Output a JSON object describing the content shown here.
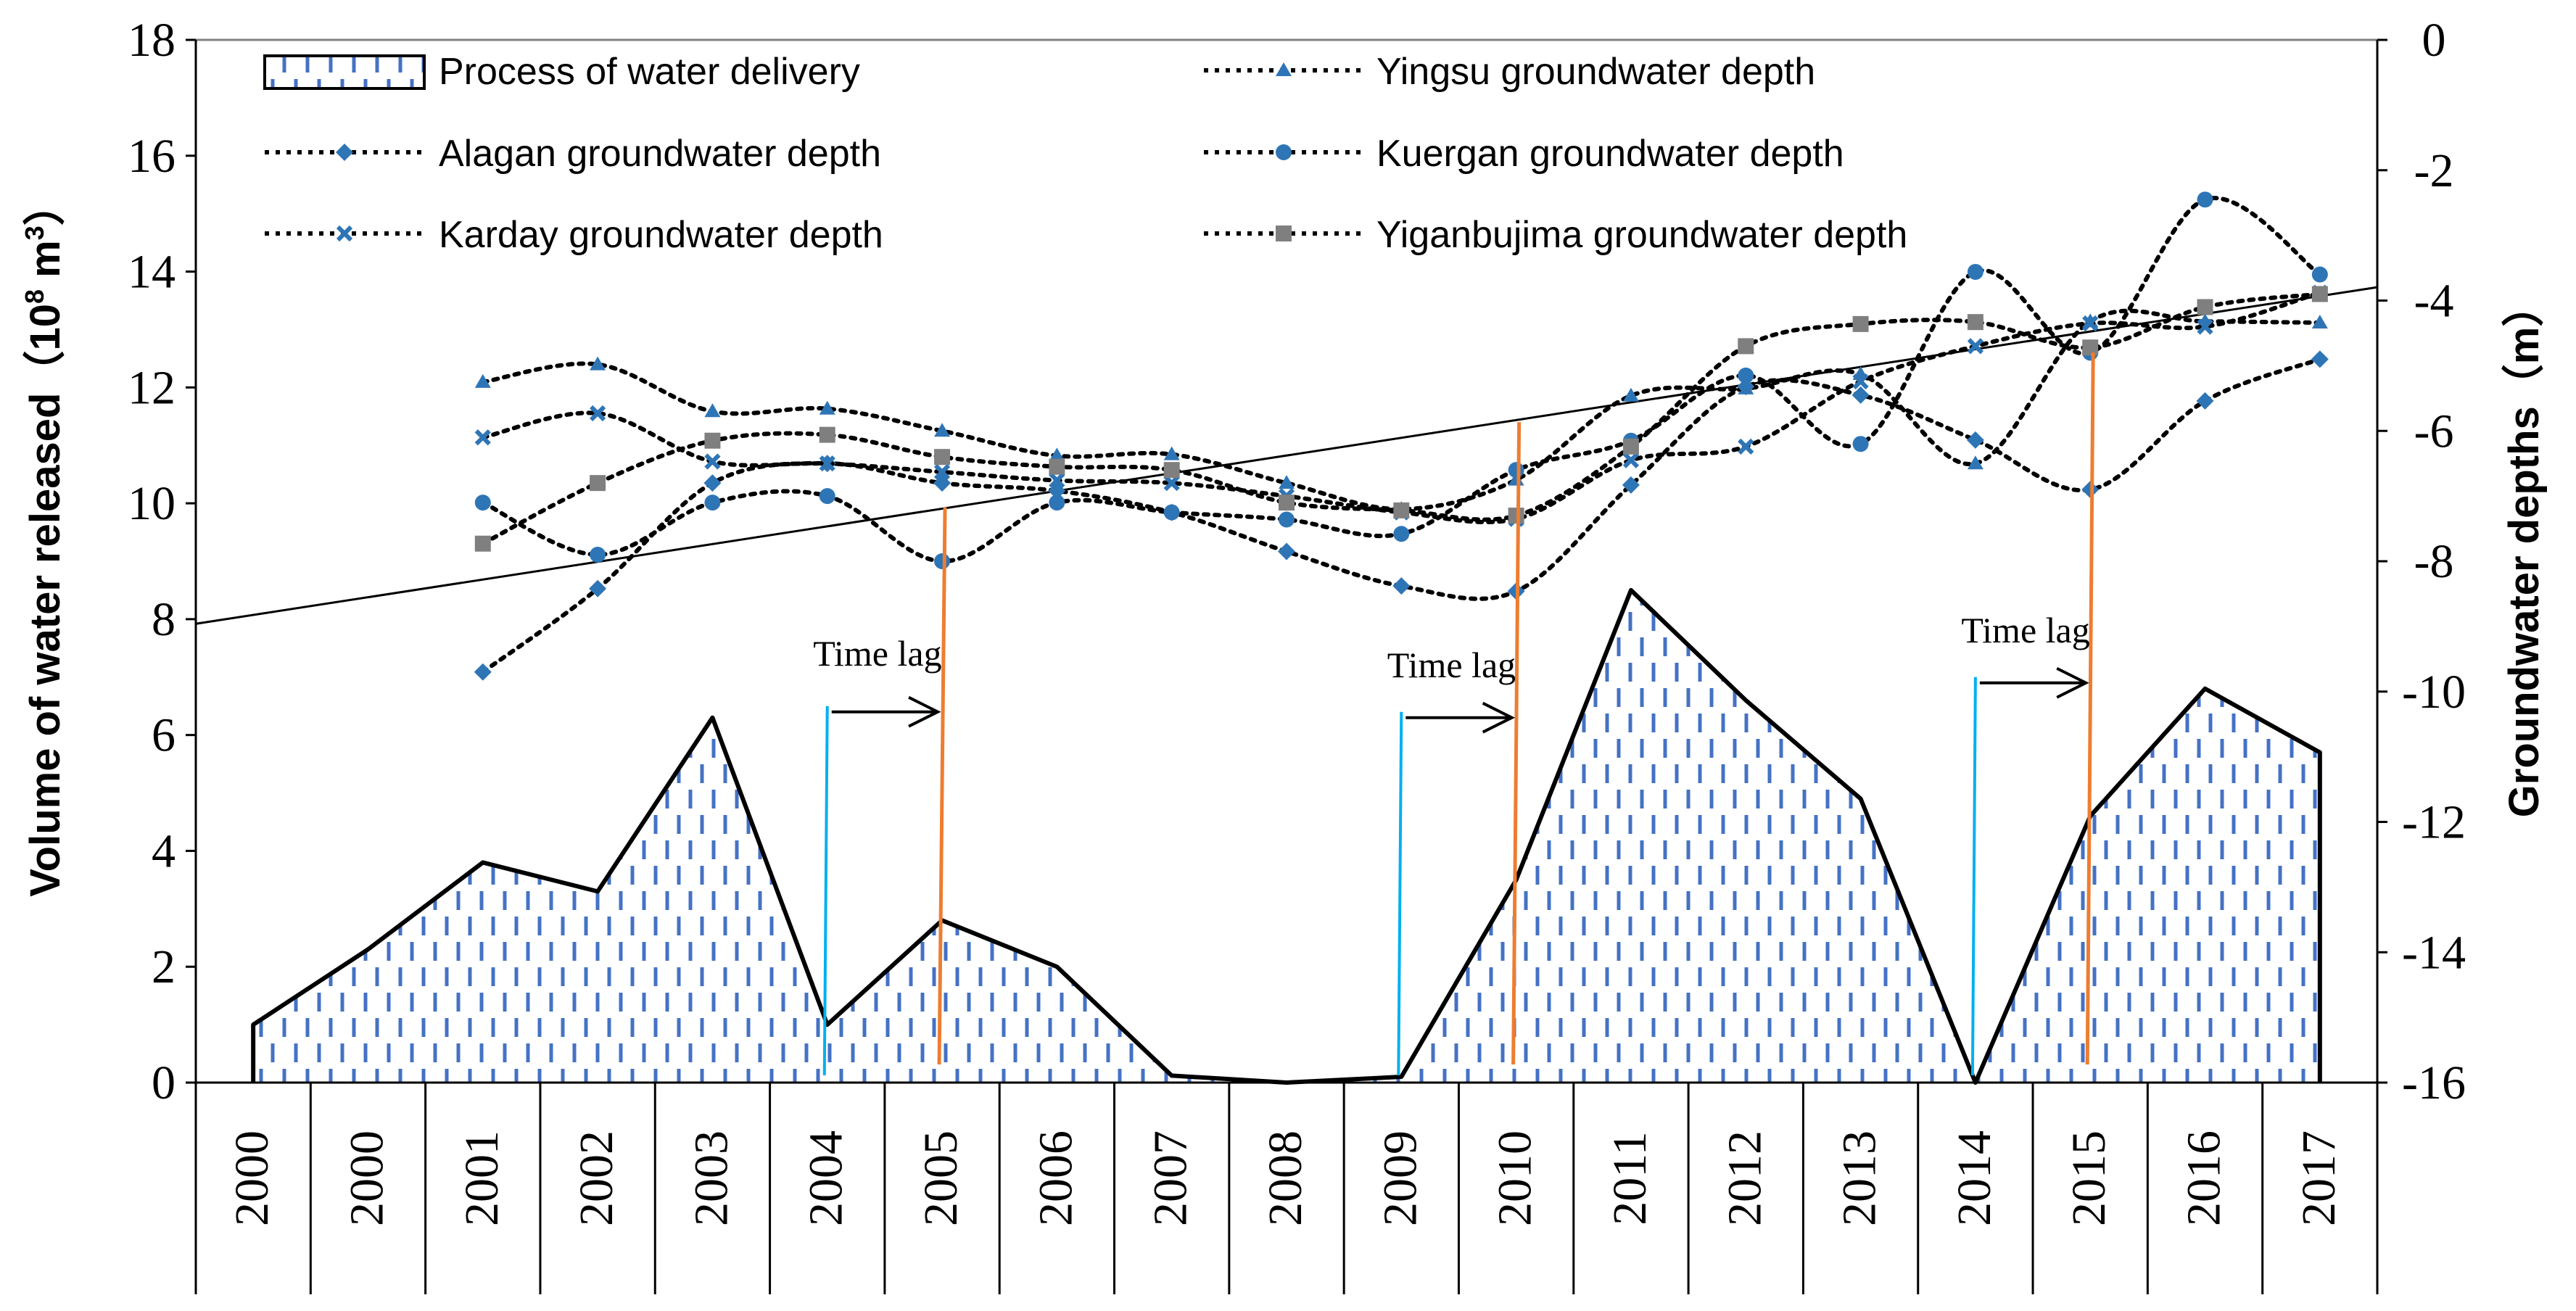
{
  "chart_data": {
    "type": "line",
    "title": "",
    "x_categories": [
      "2000",
      "2000",
      "2001",
      "2002",
      "2003",
      "2004",
      "2005",
      "2006",
      "2007",
      "2008",
      "2009",
      "2010",
      "2011",
      "2012",
      "2013",
      "2014",
      "2015",
      "2016",
      "2017"
    ],
    "y_left": {
      "label_text": "Volume of water released（10",
      "label_sup": "8",
      "label_unit": " m",
      "label_unit_sup": "3",
      "label_close": "）",
      "range": [
        0,
        18
      ],
      "ticks": [
        "0",
        "2",
        "4",
        "6",
        "8",
        "10",
        "12",
        "14",
        "16",
        "18"
      ]
    },
    "y_right": {
      "label": "Groundwater depths（m）",
      "range": [
        -16,
        0
      ],
      "ticks": [
        "-16",
        "-14",
        "-12",
        "-10",
        "-8",
        "-6",
        "-4",
        "-2",
        "0"
      ]
    },
    "area_series": {
      "name": "Process of water delivery",
      "points": [
        {
          "x": 0.5,
          "y": 1.0
        },
        {
          "x": 1.5,
          "y": 2.3
        },
        {
          "x": 2.5,
          "y": 3.8
        },
        {
          "x": 3.5,
          "y": 3.3
        },
        {
          "x": 4.5,
          "y": 6.3
        },
        {
          "x": 5.5,
          "y": 1.0
        },
        {
          "x": 6.5,
          "y": 2.8
        },
        {
          "x": 7.5,
          "y": 2.0
        },
        {
          "x": 8.5,
          "y": 0.12
        },
        {
          "x": 9.5,
          "y": 0.0
        },
        {
          "x": 10.5,
          "y": 0.1
        },
        {
          "x": 11.5,
          "y": 3.5
        },
        {
          "x": 12.5,
          "y": 8.5
        },
        {
          "x": 13.5,
          "y": 6.6
        },
        {
          "x": 14.5,
          "y": 4.9
        },
        {
          "x": 15.5,
          "y": 0.0
        },
        {
          "x": 16.5,
          "y": 4.6
        },
        {
          "x": 17.5,
          "y": 6.8
        },
        {
          "x": 18.5,
          "y": 5.7
        }
      ]
    },
    "line_series": [
      {
        "name": "Yingsu groundwater depth",
        "marker": "triangle",
        "x": [
          2.5,
          3.5,
          4.5,
          5.5,
          6.5,
          7.5,
          8.5,
          9.5,
          10.5,
          11.5,
          12.5,
          13.5,
          14.5,
          15.5,
          16.5,
          17.5,
          18.5
        ],
        "y": [
          -5.25,
          -4.98,
          -5.7,
          -5.66,
          -6.0,
          -6.38,
          -6.36,
          -6.8,
          -7.2,
          -6.75,
          -5.46,
          -5.35,
          -5.13,
          -6.5,
          -4.32,
          -4.32,
          -4.34
        ]
      },
      {
        "name": "Alagan groundwater depth",
        "marker": "diamond",
        "x": [
          2.5,
          3.5,
          4.5,
          5.5,
          6.5,
          7.5,
          8.5,
          9.5,
          10.5,
          11.5,
          12.5,
          13.5,
          14.5,
          15.5,
          16.5,
          17.5,
          18.5
        ],
        "y": [
          -9.7,
          -8.42,
          -6.8,
          -6.5,
          -6.8,
          -6.92,
          -7.25,
          -7.85,
          -8.38,
          -8.46,
          -6.83,
          -5.32,
          -5.45,
          -6.14,
          -6.9,
          -5.54,
          -4.9
        ]
      },
      {
        "name": "Karday groundwater depth",
        "marker": "x",
        "x": [
          2.5,
          3.5,
          4.5,
          5.5,
          6.5,
          7.5,
          8.5,
          9.5,
          10.5,
          11.5,
          12.5,
          13.5,
          14.5,
          15.5,
          16.5,
          17.5,
          18.5
        ],
        "y": [
          -6.1,
          -5.73,
          -6.47,
          -6.5,
          -6.63,
          -6.76,
          -6.8,
          -7.0,
          -7.25,
          -7.35,
          -6.45,
          -6.24,
          -5.24,
          -4.7,
          -4.35,
          -4.4,
          -3.88
        ]
      },
      {
        "name": "Kuergan groundwater depth",
        "marker": "circle",
        "x": [
          2.5,
          3.5,
          4.5,
          5.5,
          6.5,
          7.5,
          8.5,
          9.5,
          10.5,
          11.5,
          12.5,
          13.5,
          14.5,
          15.5,
          16.5,
          17.5,
          18.5
        ],
        "y": [
          -7.1,
          -7.9,
          -7.1,
          -7.0,
          -8.0,
          -7.1,
          -7.25,
          -7.36,
          -7.58,
          -6.6,
          -6.15,
          -5.15,
          -6.2,
          -3.56,
          -4.8,
          -2.45,
          -3.6
        ]
      },
      {
        "name": "Yiganbujima groundwater depth",
        "marker": "square",
        "x": [
          2.5,
          3.5,
          4.5,
          5.5,
          6.5,
          7.5,
          8.5,
          9.5,
          10.5,
          11.5,
          12.5,
          13.5,
          14.5,
          15.5,
          16.5,
          17.5,
          18.5
        ],
        "y": [
          -7.73,
          -6.8,
          -6.15,
          -6.06,
          -6.4,
          -6.55,
          -6.6,
          -7.1,
          -7.22,
          -7.3,
          -6.24,
          -4.7,
          -4.36,
          -4.33,
          -4.72,
          -4.1,
          -3.9
        ]
      }
    ],
    "trendline": {
      "left_y": 7.92,
      "right_y": 13.73
    },
    "annotations": [
      {
        "text": "Time lag",
        "cyan_x": 5.5,
        "orange_x": 6.5,
        "cyan_top_y": 6.5,
        "orange_top_y": 9.93,
        "label_y": 7.2,
        "arrow_y": 6.4
      },
      {
        "text": "Time lag",
        "cyan_x": 10.5,
        "orange_x": 11.5,
        "cyan_top_y": 6.4,
        "orange_top_y": 11.4,
        "label_y": 7.0,
        "arrow_y": 6.3
      },
      {
        "text": "Time lag",
        "cyan_x": 15.5,
        "orange_x": 16.5,
        "cyan_top_y": 7.0,
        "orange_top_y": 12.6,
        "label_y": 7.6,
        "arrow_y": 6.9
      }
    ],
    "legend": {
      "placement": "top",
      "entries": [
        {
          "label": "Process of water delivery",
          "kind": "area"
        },
        {
          "label": "Yingsu groundwater depth",
          "kind": "line",
          "marker": "triangle"
        },
        {
          "label": "Alagan  groundwater depth",
          "kind": "line",
          "marker": "diamond"
        },
        {
          "label": "Kuergan  groundwater depth",
          "kind": "line",
          "marker": "circle"
        },
        {
          "label": "Karday  groundwater depth",
          "kind": "line",
          "marker": "x"
        },
        {
          "label": "Yiganbujima  groundwater depth",
          "kind": "line",
          "marker": "square"
        }
      ]
    },
    "colors": {
      "axis": "#000000",
      "grid": "#808080",
      "area_hatch": "#4472C4",
      "marker_fill": "#2E75B6",
      "marker_square": "#7F7F7F",
      "cyan": "#00B0F0",
      "orange": "#ED7D31",
      "line": "#000000"
    }
  }
}
